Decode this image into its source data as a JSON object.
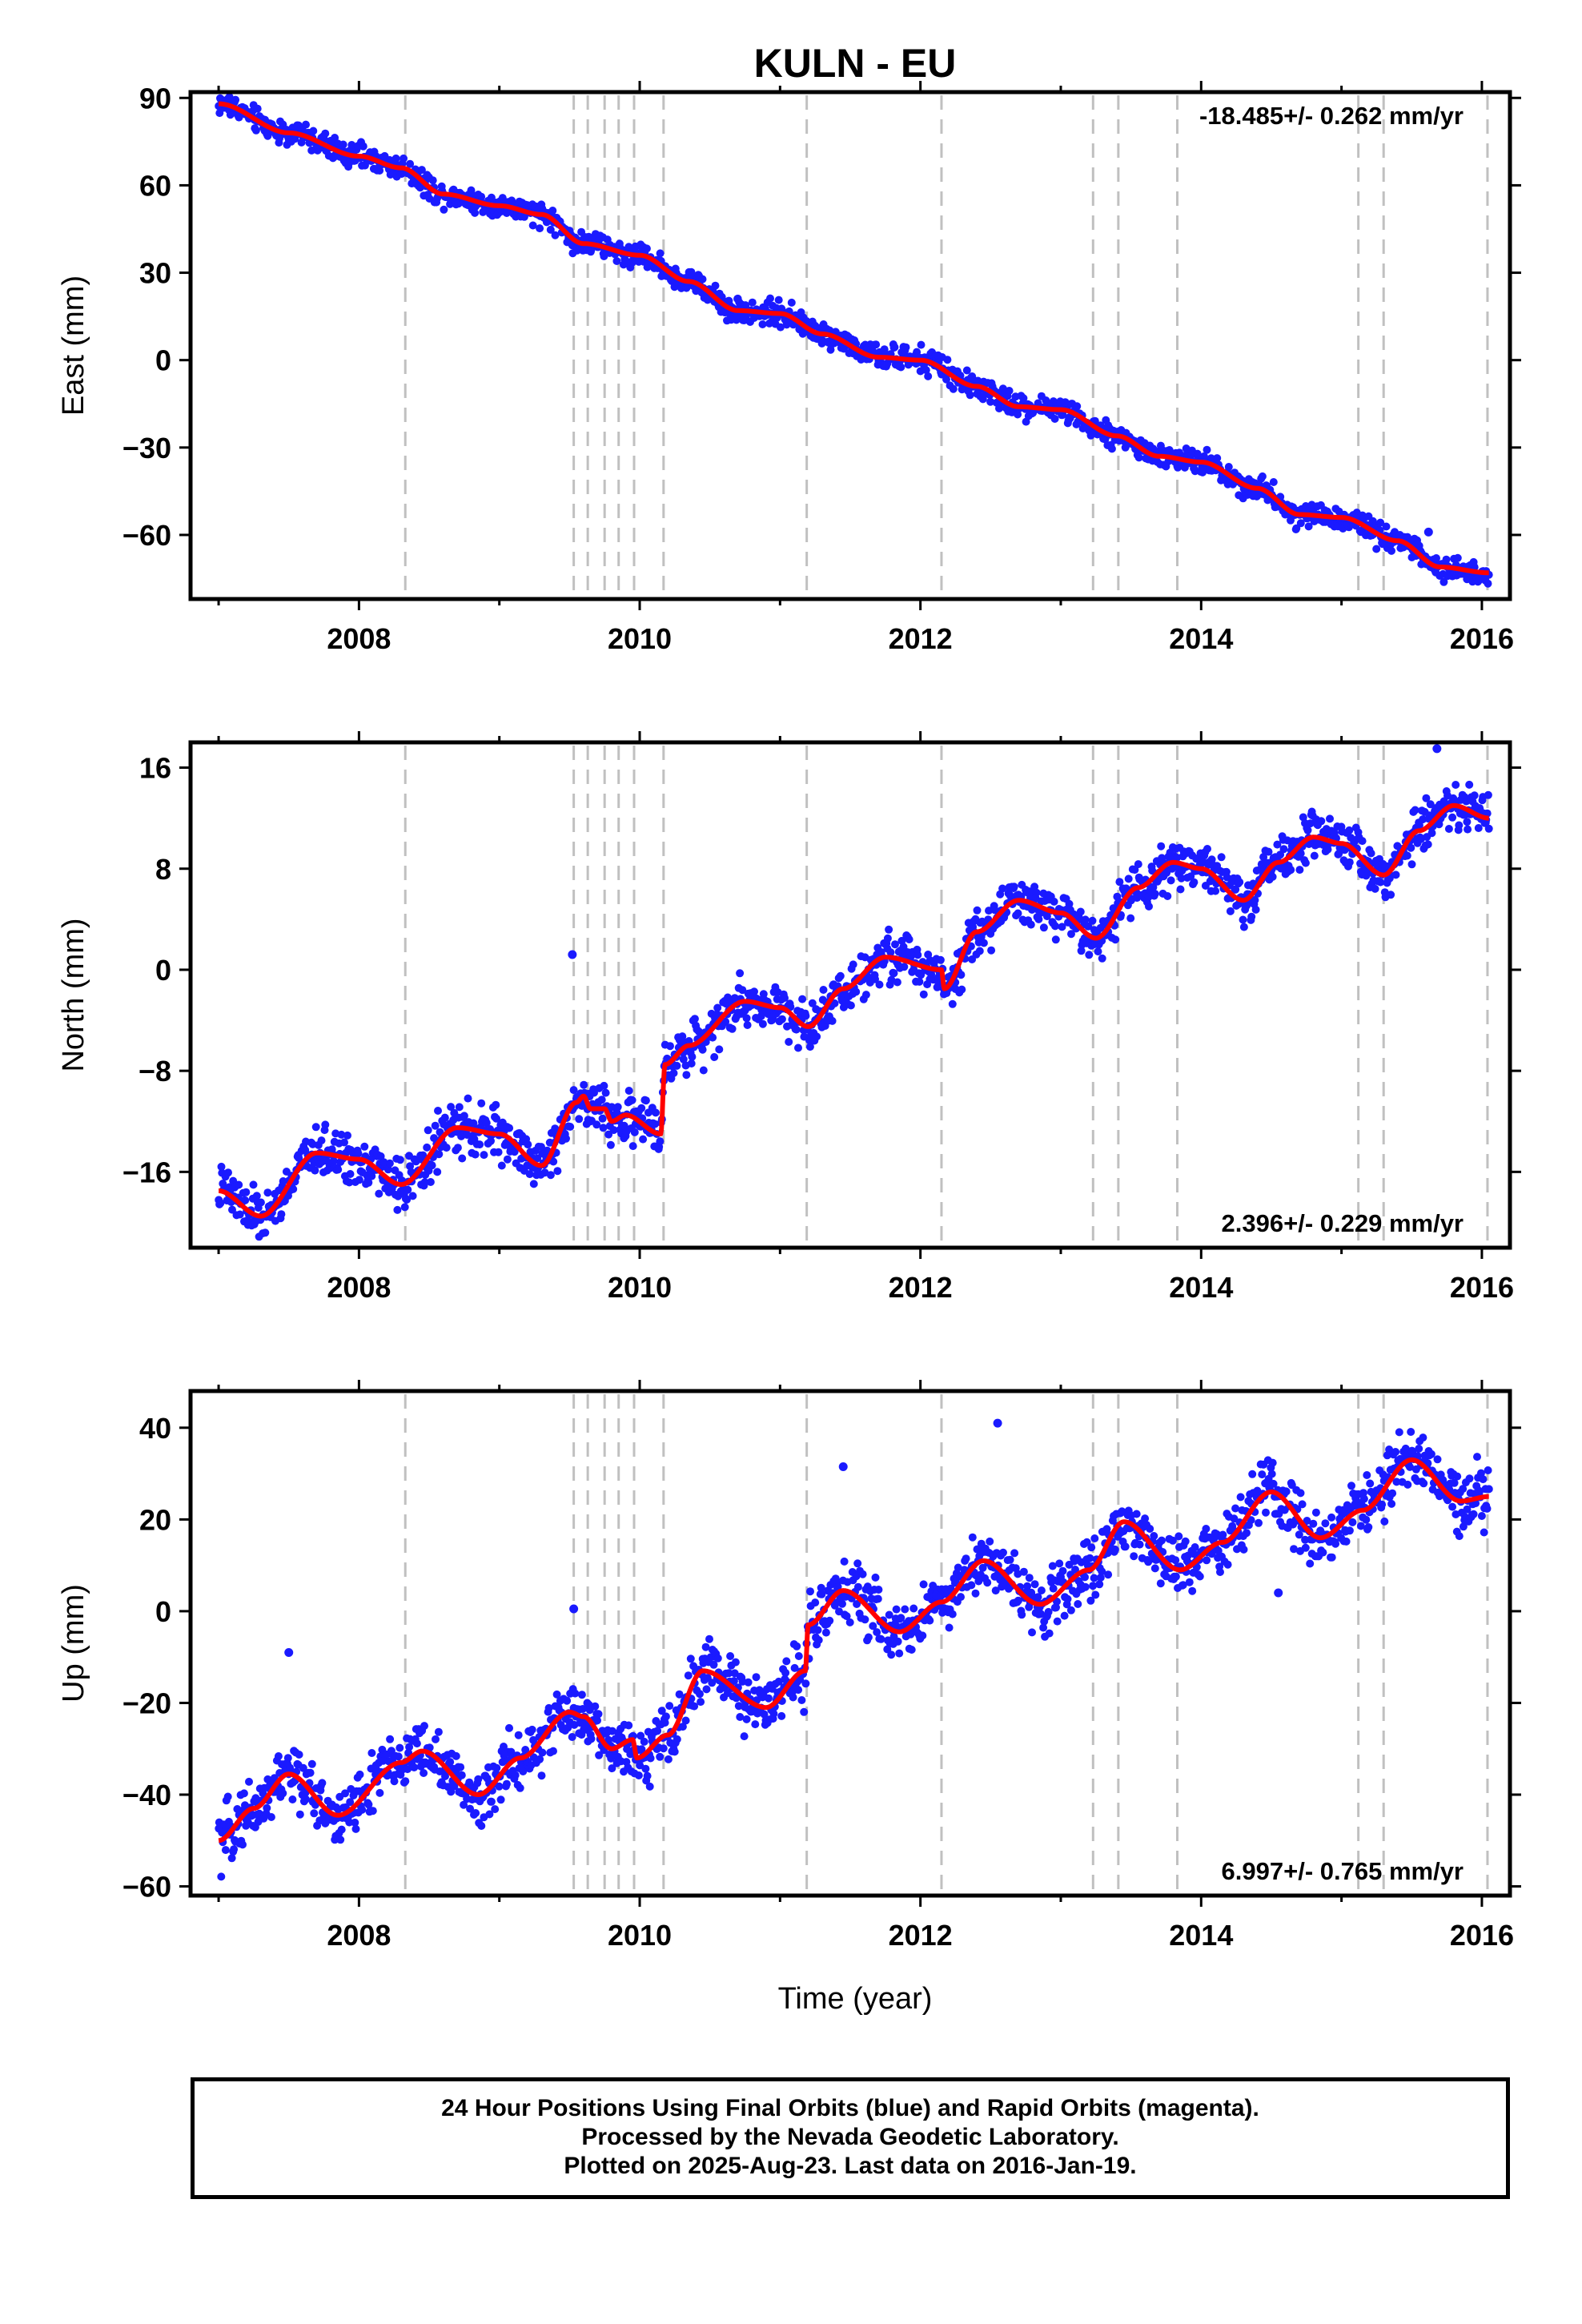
{
  "page_title": "KULN - EU",
  "x_axis_label": "Time (year)",
  "x_ticks": [
    "2008",
    "2010",
    "2012",
    "2016",
    "2014"
  ],
  "caption_lines": [
    "24 Hour Positions Using Final Orbits (blue) and Rapid Orbits (magenta).",
    "Processed by the Nevada Geodetic Laboratory.",
    "Plotted on 2025-Aug-23. Last data on 2016-Jan-19."
  ],
  "colors": {
    "points": "#1a1aff",
    "fit": "#ff0000",
    "event_lines": "#c0c0c0",
    "axes": "#000000"
  },
  "chart_data": [
    {
      "type": "scatter",
      "panel": "east",
      "title": "",
      "xlabel": "",
      "ylabel": "East (mm)",
      "xlim": [
        2006.8,
        2016.2
      ],
      "ylim": [
        -82,
        92
      ],
      "y_ticks": [
        90,
        60,
        30,
        0,
        -30,
        -60
      ],
      "x_ticks": [
        2008,
        2010,
        2012,
        2014,
        2016
      ],
      "rate_text": "-18.485+/- 0.262 mm/yr",
      "rate_position": "top-right",
      "event_lines": [
        2008.33,
        2009.53,
        2009.63,
        2009.75,
        2009.85,
        2009.96,
        2010.17,
        2011.19,
        2012.15,
        2013.23,
        2013.41,
        2013.83,
        2015.12,
        2015.3,
        2016.04
      ],
      "data_start": 2007.0,
      "data_end": 2016.05,
      "fit_knots": [
        [
          2007.0,
          88
        ],
        [
          2007.5,
          78
        ],
        [
          2008.0,
          70
        ],
        [
          2008.3,
          66
        ],
        [
          2008.6,
          57
        ],
        [
          2009.0,
          53
        ],
        [
          2009.3,
          50
        ],
        [
          2009.6,
          40
        ],
        [
          2010.0,
          36
        ],
        [
          2010.35,
          27
        ],
        [
          2010.7,
          17
        ],
        [
          2011.0,
          16
        ],
        [
          2011.3,
          9
        ],
        [
          2011.7,
          1
        ],
        [
          2012.0,
          0
        ],
        [
          2012.4,
          -9
        ],
        [
          2012.7,
          -16
        ],
        [
          2013.0,
          -17
        ],
        [
          2013.4,
          -26
        ],
        [
          2013.7,
          -33
        ],
        [
          2014.0,
          -35
        ],
        [
          2014.4,
          -44
        ],
        [
          2014.7,
          -53
        ],
        [
          2015.0,
          -54
        ],
        [
          2015.4,
          -62
        ],
        [
          2015.7,
          -71
        ],
        [
          2016.05,
          -73
        ]
      ],
      "noise_mm": 3.5,
      "outliers": [
        [
          2015.62,
          -59
        ]
      ]
    },
    {
      "type": "scatter",
      "panel": "north",
      "title": "",
      "xlabel": "",
      "ylabel": "North (mm)",
      "xlim": [
        2006.8,
        2016.2
      ],
      "ylim": [
        -22,
        18
      ],
      "y_ticks": [
        16,
        8,
        0,
        -8,
        -16
      ],
      "x_ticks": [
        2008,
        2010,
        2012,
        2014,
        2016
      ],
      "rate_text": "2.396+/- 0.229 mm/yr",
      "rate_position": "bottom-right",
      "event_lines": [
        2008.33,
        2009.53,
        2009.63,
        2009.75,
        2009.85,
        2009.96,
        2010.17,
        2011.19,
        2012.15,
        2013.23,
        2013.41,
        2013.83,
        2015.12,
        2015.3,
        2016.04
      ],
      "data_start": 2007.0,
      "data_end": 2016.05,
      "fit_knots": [
        [
          2007.0,
          -17.5
        ],
        [
          2007.3,
          -19.5
        ],
        [
          2007.7,
          -14.5
        ],
        [
          2008.0,
          -15
        ],
        [
          2008.3,
          -17
        ],
        [
          2008.7,
          -12.5
        ],
        [
          2009.0,
          -13
        ],
        [
          2009.3,
          -15.5
        ],
        [
          2009.55,
          -10.5
        ],
        [
          2009.6,
          -10
        ],
        [
          2009.65,
          -11
        ],
        [
          2009.75,
          -11
        ],
        [
          2009.8,
          -12
        ],
        [
          2009.9,
          -11.5
        ],
        [
          2010.15,
          -13
        ],
        [
          2010.18,
          -7.5
        ],
        [
          2010.35,
          -6
        ],
        [
          2010.75,
          -2.5
        ],
        [
          2011.0,
          -3
        ],
        [
          2011.2,
          -4.5
        ],
        [
          2011.45,
          -1.5
        ],
        [
          2011.75,
          1
        ],
        [
          2012.15,
          0
        ],
        [
          2012.17,
          -1.5
        ],
        [
          2012.4,
          3
        ],
        [
          2012.7,
          5.5
        ],
        [
          2013.0,
          4.5
        ],
        [
          2013.25,
          2.5
        ],
        [
          2013.55,
          6.5
        ],
        [
          2013.8,
          8.5
        ],
        [
          2014.0,
          8
        ],
        [
          2014.3,
          5.5
        ],
        [
          2014.55,
          8.5
        ],
        [
          2014.8,
          10.5
        ],
        [
          2015.0,
          10
        ],
        [
          2015.3,
          7.5
        ],
        [
          2015.55,
          11
        ],
        [
          2015.8,
          13
        ],
        [
          2016.05,
          12
        ]
      ],
      "noise_mm": 1.6,
      "outliers": [
        [
          2009.52,
          1.2
        ],
        [
          2015.68,
          17.5
        ]
      ]
    },
    {
      "type": "scatter",
      "panel": "up",
      "title": "",
      "xlabel": "Time (year)",
      "ylabel": "Up (mm)",
      "xlim": [
        2006.8,
        2016.2
      ],
      "ylim": [
        -62,
        48
      ],
      "y_ticks": [
        40,
        20,
        0,
        -20,
        -40,
        -60
      ],
      "x_ticks": [
        2008,
        2010,
        2012,
        2014,
        2016
      ],
      "rate_text": "6.997+/- 0.765 mm/yr",
      "rate_position": "bottom-right",
      "event_lines": [
        2008.33,
        2009.53,
        2009.63,
        2009.75,
        2009.85,
        2009.96,
        2010.17,
        2011.19,
        2012.15,
        2013.23,
        2013.41,
        2013.83,
        2015.12,
        2015.3,
        2016.04
      ],
      "data_start": 2007.0,
      "data_end": 2016.05,
      "fit_knots": [
        [
          2007.0,
          -50
        ],
        [
          2007.25,
          -43
        ],
        [
          2007.5,
          -35.5
        ],
        [
          2007.85,
          -44.5
        ],
        [
          2008.3,
          -33
        ],
        [
          2008.45,
          -30.5
        ],
        [
          2008.85,
          -40
        ],
        [
          2009.15,
          -32
        ],
        [
          2009.5,
          -22
        ],
        [
          2009.6,
          -23
        ],
        [
          2009.8,
          -30
        ],
        [
          2009.95,
          -28
        ],
        [
          2009.98,
          -32
        ],
        [
          2010.2,
          -27
        ],
        [
          2010.45,
          -13
        ],
        [
          2010.9,
          -21
        ],
        [
          2011.18,
          -13
        ],
        [
          2011.2,
          -3
        ],
        [
          2011.45,
          4.5
        ],
        [
          2011.85,
          -4.5
        ],
        [
          2012.15,
          2
        ],
        [
          2012.45,
          11
        ],
        [
          2012.85,
          1.5
        ],
        [
          2013.2,
          9
        ],
        [
          2013.45,
          19.5
        ],
        [
          2013.85,
          9
        ],
        [
          2014.15,
          15
        ],
        [
          2014.5,
          26
        ],
        [
          2014.85,
          16
        ],
        [
          2015.15,
          22
        ],
        [
          2015.5,
          33
        ],
        [
          2015.85,
          24
        ],
        [
          2016.05,
          25
        ]
      ],
      "noise_mm": 5.5,
      "outliers": [
        [
          2007.5,
          -9
        ],
        [
          2009.53,
          0.5
        ],
        [
          2011.45,
          31.5
        ],
        [
          2012.55,
          41
        ],
        [
          2014.55,
          4
        ]
      ]
    }
  ]
}
